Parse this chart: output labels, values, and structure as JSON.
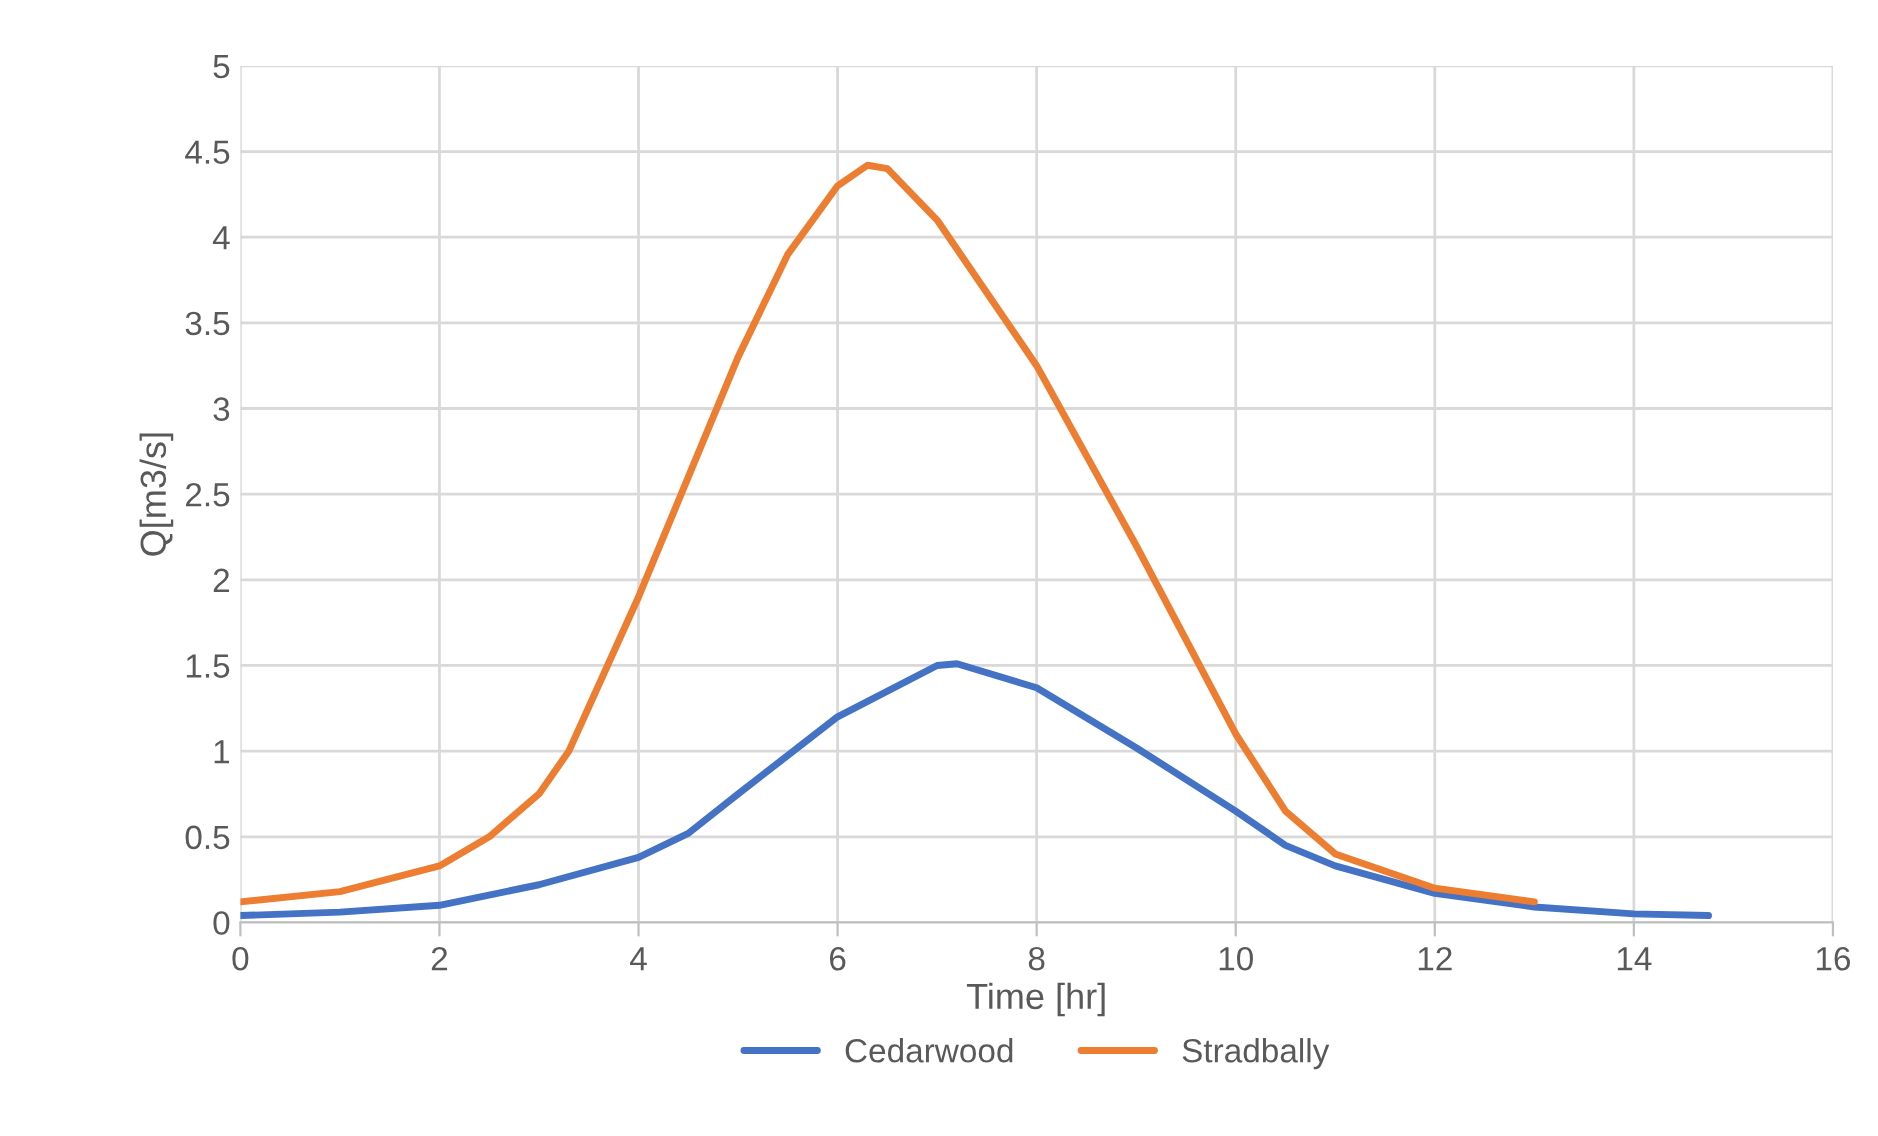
{
  "chart_data": {
    "type": "line",
    "xlabel": "Time [hr]",
    "ylabel": "Q[m3/s]",
    "xlim": [
      0,
      16
    ],
    "xticks": [
      0,
      2,
      4,
      6,
      8,
      10,
      12,
      14,
      16
    ],
    "ylim": [
      0,
      5
    ],
    "yticks": [
      0,
      0.5,
      1,
      1.5,
      2,
      2.5,
      3,
      3.5,
      4,
      4.5,
      5
    ],
    "grid": true,
    "legend": "bottom",
    "marker": "none",
    "line_style": "solid",
    "series": [
      {
        "name": "Cedarwood",
        "color": "#4472c4",
        "x": [
          0,
          1,
          2,
          3,
          4,
          4.5,
          5,
          6,
          7,
          7.2,
          8,
          9,
          10,
          10.5,
          11,
          12,
          13,
          14,
          14.75
        ],
        "values": [
          0.04,
          0.06,
          0.1,
          0.22,
          0.38,
          0.52,
          0.75,
          1.2,
          1.5,
          1.51,
          1.37,
          1.02,
          0.65,
          0.45,
          0.33,
          0.17,
          0.09,
          0.05,
          0.04
        ]
      },
      {
        "name": "Stradbally",
        "color": "#ed7d31",
        "x": [
          0,
          1,
          2,
          2.5,
          3,
          3.3,
          4,
          5,
          5.5,
          6,
          6.3,
          6.5,
          7,
          8,
          9,
          10,
          10.5,
          11,
          12,
          13
        ],
        "values": [
          0.12,
          0.18,
          0.33,
          0.5,
          0.75,
          1.0,
          1.9,
          3.3,
          3.9,
          4.3,
          4.42,
          4.4,
          4.1,
          3.25,
          2.2,
          1.1,
          0.65,
          0.4,
          0.2,
          0.12
        ]
      }
    ]
  }
}
